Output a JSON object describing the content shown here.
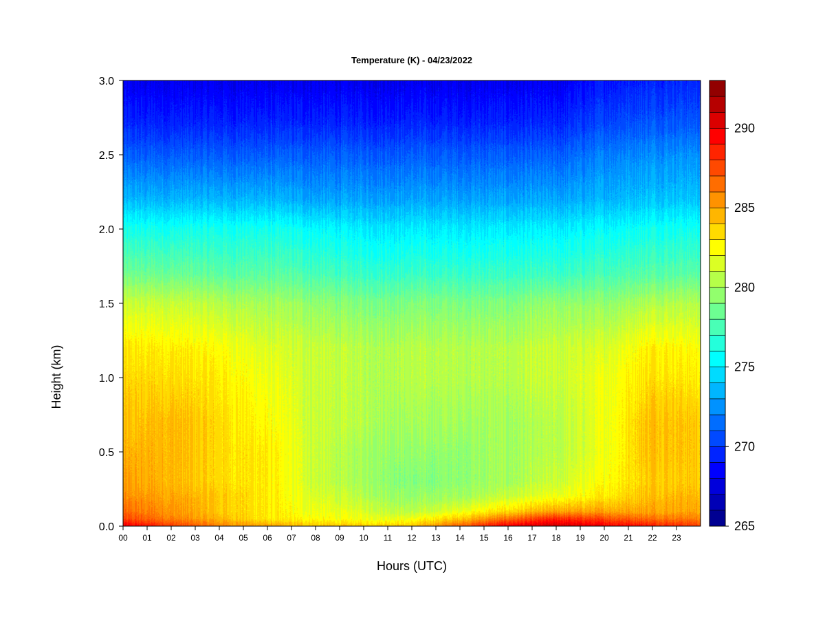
{
  "chart_data": {
    "type": "heatmap",
    "title": "Temperature (K) - 04/23/2022",
    "xlabel": "Hours (UTC)",
    "ylabel": "Height (km)",
    "x_ticks": [
      "00",
      "01",
      "02",
      "03",
      "04",
      "05",
      "06",
      "07",
      "08",
      "09",
      "10",
      "11",
      "12",
      "13",
      "14",
      "15",
      "16",
      "17",
      "18",
      "19",
      "20",
      "21",
      "22",
      "23"
    ],
    "xlim": [
      0,
      24
    ],
    "ylim": [
      0.0,
      3.0
    ],
    "y_ticks": [
      "0.0",
      "0.5",
      "1.0",
      "1.5",
      "2.0",
      "2.5",
      "3.0"
    ],
    "y_tick_values": [
      0.0,
      0.5,
      1.0,
      1.5,
      2.0,
      2.5,
      3.0
    ],
    "colorbar": {
      "range": [
        265,
        293
      ],
      "levels": 28,
      "ticks": [
        "265",
        "270",
        "275",
        "280",
        "285",
        "290"
      ],
      "tick_values": [
        265,
        270,
        275,
        280,
        285,
        290
      ],
      "colormap": "jet"
    },
    "heights_km": [
      0.0,
      0.05,
      0.1,
      0.2,
      0.3,
      0.5,
      0.7,
      1.0,
      1.2,
      1.5,
      1.7,
      2.0,
      2.2,
      2.5,
      2.7,
      3.0
    ],
    "temperature_profiles": [
      {
        "hour": 0,
        "values": [
          290,
          287.5,
          286.5,
          285.5,
          285.0,
          284.5,
          284.0,
          283.5,
          283.0,
          281.0,
          278.5,
          276.0,
          273.5,
          271.0,
          269.5,
          268.0
        ]
      },
      {
        "hour": 2,
        "values": [
          288,
          286.0,
          285.5,
          285.0,
          284.5,
          284.5,
          284.5,
          283.5,
          283.0,
          281.0,
          278.5,
          276.0,
          273.5,
          271.0,
          269.5,
          268.0
        ]
      },
      {
        "hour": 4,
        "values": [
          286,
          284.5,
          284.0,
          284.0,
          283.5,
          283.5,
          283.5,
          283.0,
          282.5,
          280.5,
          278.0,
          276.0,
          273.5,
          271.0,
          269.5,
          268.0
        ]
      },
      {
        "hour": 6,
        "values": [
          285,
          283.0,
          283.0,
          283.0,
          283.0,
          283.0,
          282.5,
          282.0,
          281.5,
          280.0,
          278.0,
          276.0,
          273.5,
          271.0,
          269.5,
          268.0
        ]
      },
      {
        "hour": 8,
        "values": [
          284,
          282.5,
          282.0,
          281.5,
          281.0,
          281.0,
          281.0,
          281.0,
          281.0,
          279.5,
          277.5,
          275.5,
          273.0,
          271.0,
          269.5,
          268.0
        ]
      },
      {
        "hour": 10,
        "values": [
          284,
          282.0,
          281.5,
          280.5,
          280.0,
          280.0,
          280.5,
          280.5,
          280.5,
          279.0,
          277.0,
          275.0,
          273.0,
          271.0,
          269.5,
          268.0
        ]
      },
      {
        "hour": 12,
        "values": [
          284,
          282.0,
          280.5,
          279.5,
          279.0,
          279.5,
          280.0,
          280.5,
          280.5,
          279.0,
          277.0,
          275.0,
          273.0,
          271.0,
          269.5,
          268.0
        ]
      },
      {
        "hour": 14,
        "values": [
          287,
          284.0,
          282.0,
          280.0,
          279.5,
          279.5,
          280.0,
          280.5,
          280.5,
          279.0,
          277.0,
          275.0,
          273.0,
          271.0,
          269.5,
          268.0
        ]
      },
      {
        "hour": 16,
        "values": [
          290,
          286.5,
          283.5,
          281.0,
          280.0,
          280.0,
          280.0,
          280.5,
          280.5,
          279.0,
          277.0,
          275.0,
          273.0,
          271.0,
          269.5,
          268.0
        ]
      },
      {
        "hour": 18,
        "values": [
          291,
          288.5,
          285.0,
          282.0,
          281.0,
          280.5,
          280.5,
          281.0,
          281.0,
          279.5,
          277.0,
          275.0,
          273.0,
          271.0,
          269.5,
          268.0
        ]
      },
      {
        "hour": 20,
        "values": [
          290,
          287.5,
          285.0,
          283.0,
          282.5,
          282.0,
          282.0,
          282.0,
          281.5,
          279.5,
          277.5,
          275.5,
          273.5,
          272.0,
          270.5,
          269.0
        ]
      },
      {
        "hour": 22,
        "values": [
          289,
          286.5,
          285.0,
          284.5,
          284.0,
          284.5,
          284.5,
          283.5,
          283.0,
          280.5,
          278.0,
          276.0,
          274.0,
          272.5,
          271.0,
          269.5
        ]
      },
      {
        "hour": 24,
        "values": [
          288,
          286.0,
          285.0,
          284.5,
          284.0,
          284.0,
          284.0,
          283.0,
          282.5,
          280.5,
          278.0,
          276.0,
          274.0,
          272.5,
          271.0,
          269.5
        ]
      }
    ]
  }
}
